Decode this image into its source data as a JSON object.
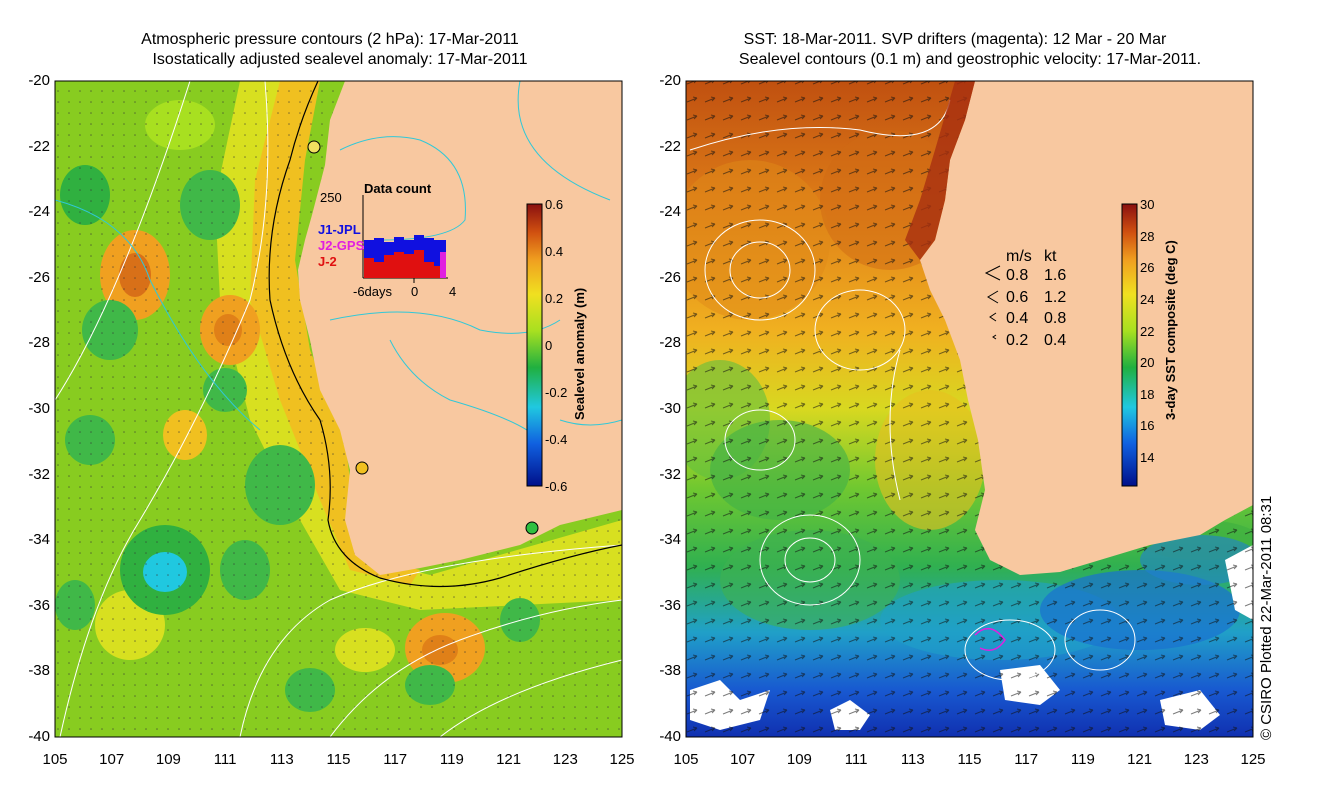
{
  "left_panel": {
    "title_line1": "Atmospheric pressure contours (2 hPa): 17-Mar-2011",
    "title_line2": "Isostatically adjusted sealevel anomaly: 17-Mar-2011",
    "colorbar": {
      "label": "Sealevel anomaly (m)",
      "ticks": [
        "0.6",
        "0.4",
        "0.2",
        "0",
        "-0.2",
        "-0.4",
        "-0.6"
      ]
    },
    "inset": {
      "title": "Data count",
      "ymax": "250",
      "legend": [
        "J1-JPL",
        "J2-GPS",
        "J-2"
      ],
      "xticks": [
        "-6days",
        "0",
        "4"
      ],
      "colors": {
        "J1-JPL": "#1010e0",
        "J2-GPS": "#e020e0",
        "J-2": "#e01010"
      }
    }
  },
  "right_panel": {
    "title_line1": "SST: 18-Mar-2011. SVP drifters (magenta): 12 Mar - 20 Mar",
    "title_line2": "Sealevel contours (0.1 m) and geostrophic velocity: 17-Mar-2011.",
    "colorbar": {
      "label": "3-day SST composite (deg C)",
      "ticks": [
        "30",
        "28",
        "26",
        "24",
        "22",
        "20",
        "18",
        "16",
        "14"
      ]
    },
    "velocity_key": {
      "header_ms": "m/s",
      "header_kt": "kt",
      "rows": [
        {
          "ms": "0.8",
          "kt": "1.6"
        },
        {
          "ms": "0.6",
          "kt": "1.2"
        },
        {
          "ms": "0.4",
          "kt": "0.8"
        },
        {
          "ms": "0.2",
          "kt": "0.4"
        }
      ]
    }
  },
  "axes": {
    "lat_ticks": [
      "-20",
      "-22",
      "-24",
      "-26",
      "-28",
      "-30",
      "-32",
      "-34",
      "-36",
      "-38",
      "-40"
    ],
    "lon_ticks": [
      "105",
      "107",
      "109",
      "111",
      "113",
      "115",
      "117",
      "119",
      "121",
      "123",
      "125"
    ]
  },
  "copyright": "© CSIRO Plotted 22-Mar-2011 08:31",
  "colors": {
    "land": "#f8c8a0",
    "sealevel_base": "#88cc20",
    "sst_warm": "#d06010",
    "sst_cool": "#1040c0"
  }
}
